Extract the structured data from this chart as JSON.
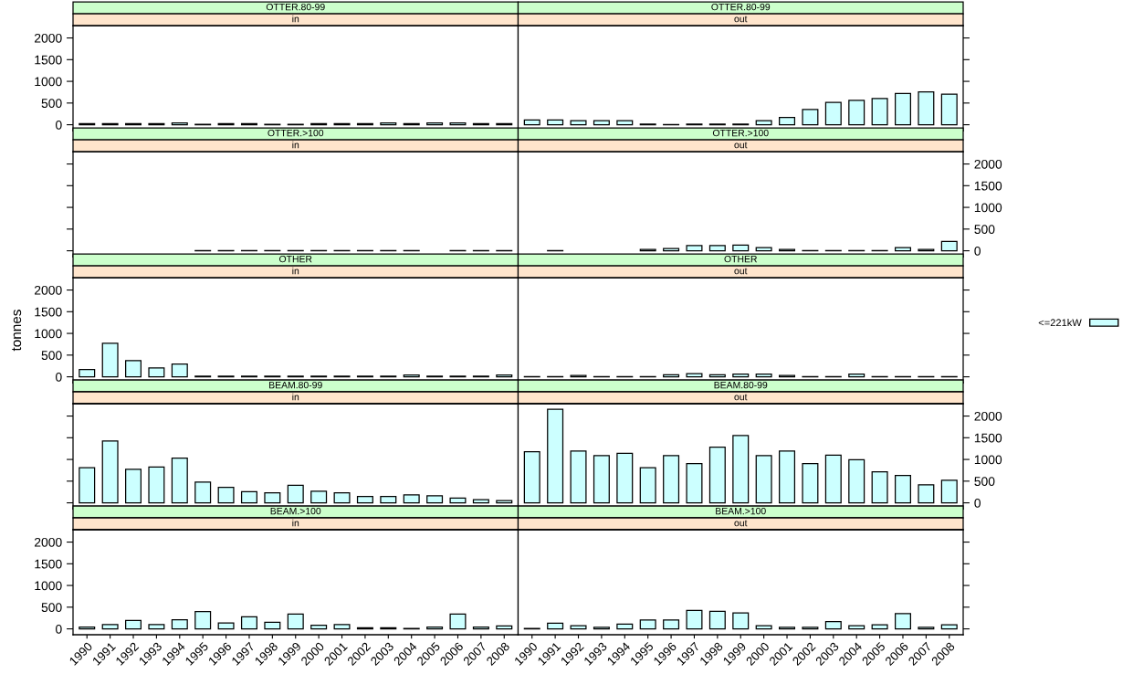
{
  "chart_data": [
    {
      "type": "bar",
      "title": "OTTER.80-99",
      "subtitle": "in",
      "categories": [
        "1990",
        "1991",
        "1992",
        "1993",
        "1994",
        "1995",
        "1996",
        "1997",
        "1998",
        "1999",
        "2000",
        "2001",
        "2002",
        "2003",
        "2004",
        "2005",
        "2006",
        "2007",
        "2008"
      ],
      "legend": "right",
      "tick_labels": "y",
      "ylim": [
        -135,
        2285
      ],
      "yticks": [
        0,
        500,
        1000,
        1500,
        2000
      ],
      "series": [
        {
          "name": "<=221kW",
          "color": "#ccffff",
          "values": [
            25,
            25,
            25,
            25,
            40,
            10,
            25,
            25,
            10,
            10,
            25,
            25,
            25,
            40,
            25,
            40,
            40,
            25,
            25
          ]
        }
      ]
    },
    {
      "type": "bar",
      "title": "OTTER.80-99",
      "subtitle": "out",
      "categories": [
        "1990",
        "1991",
        "1992",
        "1993",
        "1994",
        "1995",
        "1996",
        "1997",
        "1998",
        "1999",
        "2000",
        "2001",
        "2002",
        "2003",
        "2004",
        "2005",
        "2006",
        "2007",
        "2008"
      ],
      "tick_labels": false,
      "ylim": [
        -135,
        2285
      ],
      "yticks": [
        0,
        500,
        1000,
        1500,
        2000
      ],
      "series": [
        {
          "color": "#ccffff",
          "values": [
            110,
            110,
            95,
            95,
            95,
            15,
            5,
            15,
            15,
            15,
            95,
            165,
            350,
            515,
            560,
            605,
            720,
            755,
            705
          ]
        }
      ]
    },
    {
      "type": "bar",
      "title": "OTTER.>100",
      "subtitle": "in",
      "categories": [
        "1990",
        "1991",
        "1992",
        "1993",
        "1994",
        "1995",
        "1996",
        "1997",
        "1998",
        "1999",
        "2000",
        "2001",
        "2002",
        "2003",
        "2004",
        "2005",
        "2006",
        "2007",
        "2008"
      ],
      "tick_labels": false,
      "ylim": [
        -135,
        2285
      ],
      "yticks": [
        0,
        500,
        1000,
        1500,
        2000
      ],
      "series": [
        {
          "color": "#ccffff",
          "values": [
            null,
            null,
            null,
            null,
            null,
            5,
            5,
            5,
            5,
            5,
            5,
            5,
            5,
            5,
            5,
            null,
            5,
            5,
            5
          ]
        }
      ]
    },
    {
      "type": "bar",
      "title": "OTTER.>100",
      "subtitle": "out",
      "categories": [
        "1990",
        "1991",
        "1992",
        "1993",
        "1994",
        "1995",
        "1996",
        "1997",
        "1998",
        "1999",
        "2000",
        "2001",
        "2002",
        "2003",
        "2004",
        "2005",
        "2006",
        "2007",
        "2008"
      ],
      "tick_labels": "y",
      "ylim": [
        -135,
        2285
      ],
      "yticks": [
        0,
        500,
        1000,
        1500,
        2000
      ],
      "series": [
        {
          "color": "#ccffff",
          "values": [
            null,
            5,
            null,
            null,
            null,
            30,
            50,
            120,
            120,
            130,
            75,
            30,
            5,
            5,
            5,
            5,
            75,
            30,
            215
          ]
        }
      ]
    },
    {
      "type": "bar",
      "title": "OTHER",
      "subtitle": "in",
      "ylabel": "tonnes",
      "categories": [
        "1990",
        "1991",
        "1992",
        "1993",
        "1994",
        "1995",
        "1996",
        "1997",
        "1998",
        "1999",
        "2000",
        "2001",
        "2002",
        "2003",
        "2004",
        "2005",
        "2006",
        "2007",
        "2008"
      ],
      "tick_labels": "y",
      "ylim": [
        -135,
        2285
      ],
      "yticks": [
        0,
        500,
        1000,
        1500,
        2000
      ],
      "series": [
        {
          "color": "#ccffff",
          "values": [
            170,
            770,
            375,
            205,
            295,
            15,
            15,
            15,
            15,
            15,
            15,
            15,
            15,
            15,
            40,
            15,
            15,
            15,
            40
          ]
        }
      ]
    },
    {
      "type": "bar",
      "title": "OTHER",
      "subtitle": "out",
      "categories": [
        "1990",
        "1991",
        "1992",
        "1993",
        "1994",
        "1995",
        "1996",
        "1997",
        "1998",
        "1999",
        "2000",
        "2001",
        "2002",
        "2003",
        "2004",
        "2005",
        "2006",
        "2007",
        "2008"
      ],
      "tick_labels": false,
      "ylim": [
        -135,
        2285
      ],
      "yticks": [
        0,
        500,
        1000,
        1500,
        2000
      ],
      "series": [
        {
          "color": "#ccffff",
          "values": [
            5,
            5,
            30,
            5,
            5,
            5,
            45,
            75,
            45,
            60,
            60,
            30,
            5,
            5,
            60,
            5,
            5,
            5,
            5
          ]
        }
      ]
    },
    {
      "type": "bar",
      "title": "BEAM.80-99",
      "subtitle": "in",
      "categories": [
        "1990",
        "1991",
        "1992",
        "1993",
        "1994",
        "1995",
        "1996",
        "1997",
        "1998",
        "1999",
        "2000",
        "2001",
        "2002",
        "2003",
        "2004",
        "2005",
        "2006",
        "2007",
        "2008"
      ],
      "tick_labels": false,
      "ylim": [
        -135,
        2285
      ],
      "yticks": [
        0,
        500,
        1000,
        1500,
        2000
      ],
      "series": [
        {
          "color": "#ccffff",
          "values": [
            810,
            1425,
            775,
            825,
            1030,
            480,
            355,
            255,
            230,
            405,
            270,
            230,
            145,
            145,
            185,
            160,
            110,
            75,
            50
          ]
        }
      ]
    },
    {
      "type": "bar",
      "title": "BEAM.80-99",
      "subtitle": "out",
      "categories": [
        "1990",
        "1991",
        "1992",
        "1993",
        "1994",
        "1995",
        "1996",
        "1997",
        "1998",
        "1999",
        "2000",
        "2001",
        "2002",
        "2003",
        "2004",
        "2005",
        "2006",
        "2007",
        "2008"
      ],
      "tick_labels": "y",
      "ylim": [
        -135,
        2285
      ],
      "yticks": [
        0,
        500,
        1000,
        1500,
        2000
      ],
      "series": [
        {
          "color": "#ccffff",
          "values": [
            1180,
            2155,
            1195,
            1090,
            1140,
            810,
            1090,
            905,
            1285,
            1550,
            1090,
            1195,
            905,
            1100,
            995,
            715,
            630,
            415,
            520
          ]
        }
      ]
    },
    {
      "type": "bar",
      "title": "BEAM.>100",
      "subtitle": "in",
      "categories": [
        "1990",
        "1991",
        "1992",
        "1993",
        "1994",
        "1995",
        "1996",
        "1997",
        "1998",
        "1999",
        "2000",
        "2001",
        "2002",
        "2003",
        "2004",
        "2005",
        "2006",
        "2007",
        "2008"
      ],
      "ylim": [
        -135,
        2285
      ],
      "yticks": [
        0,
        500,
        1000,
        1500,
        2000
      ],
      "series": [
        {
          "color": "#ccffff",
          "values": [
            40,
            100,
            195,
            100,
            210,
            400,
            135,
            280,
            150,
            340,
            85,
            100,
            25,
            25,
            10,
            40,
            340,
            40,
            70
          ]
        }
      ]
    },
    {
      "type": "bar",
      "title": "BEAM.>100",
      "subtitle": "out",
      "categories": [
        "1990",
        "1991",
        "1992",
        "1993",
        "1994",
        "1995",
        "1996",
        "1997",
        "1998",
        "1999",
        "2000",
        "2001",
        "2002",
        "2003",
        "2004",
        "2005",
        "2006",
        "2007",
        "2008"
      ],
      "tick_labels": "x",
      "ylim": [
        -135,
        2285
      ],
      "yticks": [
        0,
        500,
        1000,
        1500,
        2000
      ],
      "series": [
        {
          "color": "#ccffff",
          "values": [
            10,
            130,
            75,
            35,
            110,
            205,
            205,
            425,
            405,
            370,
            75,
            35,
            35,
            165,
            75,
            95,
            350,
            35,
            95
          ]
        }
      ]
    }
  ]
}
